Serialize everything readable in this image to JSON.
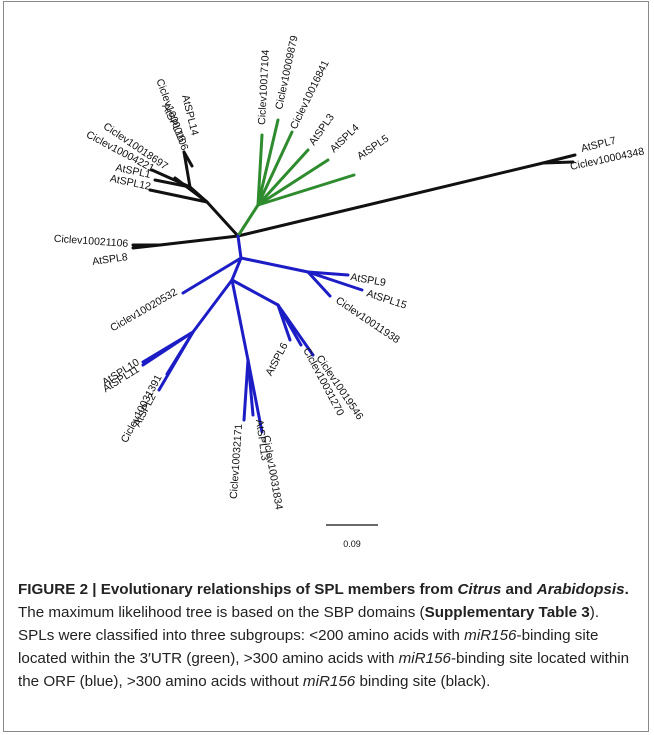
{
  "diagram": {
    "leaves": {
      "AtSPL14": "AtSPL14",
      "Ciclev10000106": "Ciclev10000106",
      "AtSPL16": "AtSPL16",
      "Ciclev10018697": "Ciclev10018697",
      "Ciclev10004221": "Ciclev10004221",
      "AtSPL1": "AtSPL1",
      "AtSPL12": "AtSPL12",
      "Ciclev10017104": "Ciclev10017104",
      "Ciclev10009879": "Ciclev10009879",
      "Ciclev10016841": "Ciclev10016841",
      "AtSPL3": "AtSPL3",
      "AtSPL4": "AtSPL4",
      "AtSPL5": "AtSPL5",
      "AtSPL7": "AtSPL7",
      "Ciclev10004348": "Ciclev10004348",
      "Ciclev10021106": "Ciclev10021106",
      "AtSPL8": "AtSPL8",
      "AtSPL9": "AtSPL9",
      "AtSPL15": "AtSPL15",
      "Ciclev10011938": "Ciclev10011938",
      "Ciclev10020532": "Ciclev10020532",
      "AtSPL10": "AtSPL10",
      "AtSPL11": "AtSPL11",
      "Ciclev10031391": "Ciclev10031391",
      "AtSPL2": "AtSPL2",
      "Ciclev10032171": "Ciclev10032171",
      "AtSPL13": "AtSPL13",
      "Ciclev10031834": "Ciclev10031834",
      "AtSPL6": "AtSPL6",
      "Ciclev10031270": "Ciclev10031270",
      "Ciclev10019546": "Ciclev10019546"
    },
    "scale_label": "0.09",
    "colors": {
      "green": "#2e8b2e",
      "blue": "#1d1dc6",
      "black": "#111111"
    }
  },
  "caption": {
    "title_a": "FIGURE 2 | Evolutionary relationships of SPL members from ",
    "title_b": "Citrus",
    "title_c": " and ",
    "title_d": "Arabidopsis",
    "title_e": ".",
    "t1": " The maximum likelihood tree is based on the SBP domains (",
    "t2": "Supplementary Table 3",
    "t3": "). SPLs were classified into three subgroups: <200 amino acids with ",
    "t4": "miR156",
    "t5": "-binding site located within the 3′UTR (green), >300 amino acids with ",
    "t6": "miR156",
    "t7": "-binding site located within the ORF (blue), >300 amino acids without ",
    "t8": "miR156",
    "t9": " binding site (black)."
  }
}
